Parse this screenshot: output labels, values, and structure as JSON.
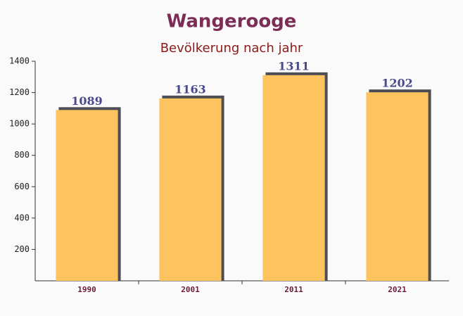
{
  "chart_data": {
    "type": "bar",
    "title": "Wangerooge",
    "subtitle": "Bevölkerung nach jahr",
    "categories": [
      "1990",
      "2001",
      "2011",
      "2021"
    ],
    "values": [
      1089,
      1163,
      1311,
      1202
    ],
    "color": "#fdc35e",
    "ylim": [
      0,
      1400
    ],
    "yticks": [
      200,
      400,
      600,
      800,
      1000,
      1200,
      1400
    ]
  }
}
